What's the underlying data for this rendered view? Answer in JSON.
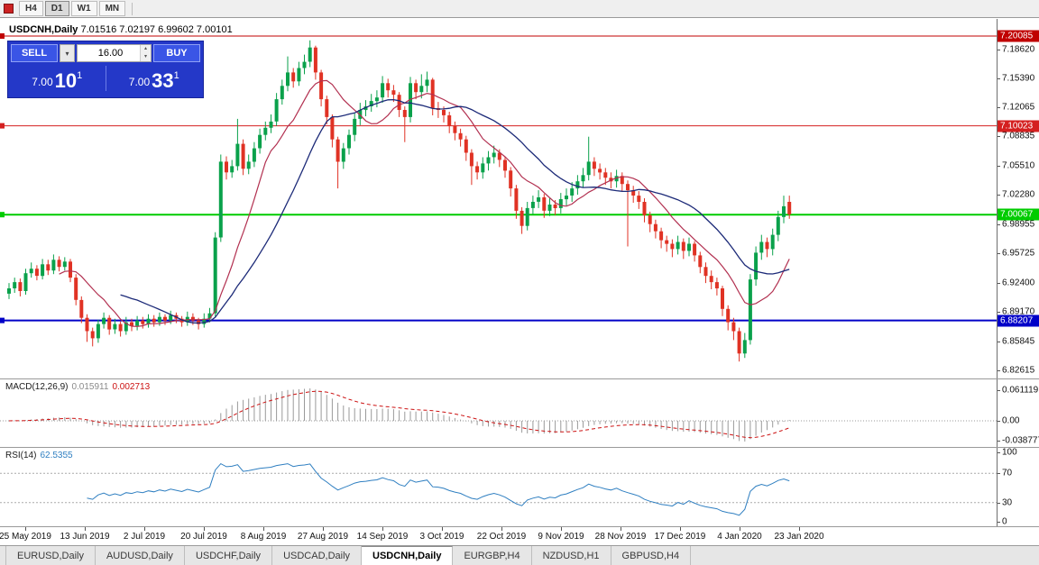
{
  "toolbar": {
    "timeframes": [
      "H4",
      "D1",
      "W1",
      "MN"
    ],
    "active_timeframe": "D1"
  },
  "chart": {
    "title": "USDCNH,Daily",
    "ohlc": "7.01516 7.02197 6.99602 7.00101"
  },
  "trade_panel": {
    "sell_label": "SELL",
    "buy_label": "BUY",
    "volume": "16.00",
    "sell": {
      "base": "7.00",
      "pips": "10",
      "sup": "1"
    },
    "buy": {
      "base": "7.00",
      "pips": "33",
      "sup": "1"
    }
  },
  "icons": {
    "dropdown": "▾",
    "spin_up": "▴",
    "spin_down": "▾"
  },
  "price_axis": [
    "7.18620",
    "7.15390",
    "7.12065",
    "7.08835",
    "7.05510",
    "7.02280",
    "6.98955",
    "6.95725",
    "6.92400",
    "6.89170",
    "6.85845",
    "6.82615"
  ],
  "hlines": [
    {
      "price": "7.20085",
      "color": "#c00000",
      "thickness": 1
    },
    {
      "price": "7.10023",
      "color": "#d42020",
      "thickness": 1
    },
    {
      "price": "7.00067",
      "color": "#00cc00",
      "thickness": 2
    },
    {
      "price": "6.88207",
      "color": "#0000c8",
      "thickness": 2
    }
  ],
  "macd": {
    "label": "MACD(12,26,9)",
    "value_main": "0.015911",
    "value_signal": "0.002713",
    "axis": [
      "0.061119",
      "0.00",
      "-0.038777"
    ]
  },
  "rsi": {
    "label": "RSI(14)",
    "value": "62.5355",
    "axis": [
      "100",
      "70",
      "30",
      "0"
    ],
    "levels": [
      70,
      30
    ]
  },
  "date_axis": [
    "25 May 2019",
    "13 Jun 2019",
    "2 Jul 2019",
    "20 Jul 2019",
    "8 Aug 2019",
    "27 Aug 2019",
    "14 Sep 2019",
    "3 Oct 2019",
    "22 Oct 2019",
    "9 Nov 2019",
    "28 Nov 2019",
    "17 Dec 2019",
    "4 Jan 2020",
    "23 Jan 2020"
  ],
  "tabs": [
    {
      "label": "EURUSD,Daily",
      "active": false
    },
    {
      "label": "AUDUSD,Daily",
      "active": false
    },
    {
      "label": "USDCHF,Daily",
      "active": false
    },
    {
      "label": "USDCAD,Daily",
      "active": false
    },
    {
      "label": "USDCNH,Daily",
      "active": true
    },
    {
      "label": "EURGBP,H4",
      "active": false
    },
    {
      "label": "NZDUSD,H1",
      "active": false
    },
    {
      "label": "GBPUSD,H4",
      "active": false
    }
  ],
  "colors": {
    "candle_up": "#0aa14b",
    "candle_down": "#e03224",
    "ma_fast": "#b23050",
    "ma_slow": "#1c2a78",
    "macd_hist": "#9a9a9a",
    "macd_signal": "#cc1111",
    "rsi": "#2f7fc1"
  },
  "chart_data": {
    "type": "candlestick",
    "symbol": "USDCNH",
    "timeframe": "Daily",
    "last_bar": {
      "open": 7.01516,
      "high": 7.02197,
      "low": 6.99602,
      "close": 7.00101
    },
    "indicators": [
      "SMA fast (red)",
      "SMA slow (navy)",
      "MACD(12,26,9)",
      "RSI(14)"
    ],
    "y_range": [
      6.82615,
      7.20085
    ],
    "candles": [
      [
        6.912,
        6.924,
        6.906,
        6.918
      ],
      [
        6.918,
        6.93,
        6.913,
        6.925
      ],
      [
        6.925,
        6.929,
        6.909,
        6.915
      ],
      [
        6.915,
        6.94,
        6.911,
        6.935
      ],
      [
        6.935,
        6.947,
        6.93,
        6.94
      ],
      [
        6.94,
        6.944,
        6.927,
        6.932
      ],
      [
        6.932,
        6.951,
        6.928,
        6.945
      ],
      [
        6.945,
        6.95,
        6.933,
        6.938
      ],
      [
        6.938,
        6.956,
        6.934,
        6.95
      ],
      [
        6.95,
        6.954,
        6.937,
        6.942
      ],
      [
        6.942,
        6.953,
        6.938,
        6.948
      ],
      [
        6.948,
        6.951,
        6.925,
        6.93
      ],
      [
        6.93,
        6.934,
        6.899,
        6.905
      ],
      [
        6.905,
        6.909,
        6.879,
        6.885
      ],
      [
        6.885,
        6.889,
        6.858,
        6.87
      ],
      [
        6.87,
        6.874,
        6.853,
        6.862
      ],
      [
        6.862,
        6.883,
        6.857,
        6.878
      ],
      [
        6.878,
        6.891,
        6.873,
        6.885
      ],
      [
        6.885,
        6.888,
        6.866,
        6.872
      ],
      [
        6.872,
        6.884,
        6.867,
        6.878
      ],
      [
        6.878,
        6.881,
        6.864,
        6.87
      ],
      [
        6.87,
        6.886,
        6.866,
        6.88
      ],
      [
        6.88,
        6.884,
        6.87,
        6.876
      ],
      [
        6.876,
        6.887,
        6.871,
        6.882
      ],
      [
        6.882,
        6.886,
        6.873,
        6.878
      ],
      [
        6.878,
        6.889,
        6.874,
        6.884
      ],
      [
        6.884,
        6.888,
        6.875,
        6.88
      ],
      [
        6.88,
        6.891,
        6.876,
        6.886
      ],
      [
        6.886,
        6.889,
        6.877,
        6.882
      ],
      [
        6.882,
        6.893,
        6.878,
        6.888
      ],
      [
        6.888,
        6.891,
        6.879,
        6.884
      ],
      [
        6.884,
        6.887,
        6.875,
        6.88
      ],
      [
        6.88,
        6.892,
        6.876,
        6.886
      ],
      [
        6.886,
        6.89,
        6.877,
        6.882
      ],
      [
        6.882,
        6.885,
        6.872,
        6.878
      ],
      [
        6.878,
        6.89,
        6.874,
        6.884
      ],
      [
        6.884,
        6.896,
        6.88,
        6.89
      ],
      [
        6.89,
        6.981,
        6.886,
        6.975
      ],
      [
        6.975,
        7.068,
        6.97,
        7.06
      ],
      [
        7.06,
        7.066,
        7.04,
        7.048
      ],
      [
        7.048,
        7.062,
        7.042,
        7.055
      ],
      [
        7.055,
        7.108,
        7.05,
        7.08
      ],
      [
        7.08,
        7.085,
        7.045,
        7.052
      ],
      [
        7.052,
        7.068,
        7.046,
        7.06
      ],
      [
        7.06,
        7.082,
        7.054,
        7.075
      ],
      [
        7.075,
        7.097,
        7.069,
        7.09
      ],
      [
        7.09,
        7.105,
        7.084,
        7.098
      ],
      [
        7.098,
        7.113,
        7.092,
        7.105
      ],
      [
        7.105,
        7.137,
        7.1,
        7.13
      ],
      [
        7.13,
        7.152,
        7.124,
        7.145
      ],
      [
        7.145,
        7.178,
        7.139,
        7.16
      ],
      [
        7.16,
        7.165,
        7.143,
        7.15
      ],
      [
        7.15,
        7.172,
        7.145,
        7.165
      ],
      [
        7.165,
        7.18,
        7.158,
        7.172
      ],
      [
        7.172,
        7.196,
        7.166,
        7.188
      ],
      [
        7.188,
        7.19,
        7.152,
        7.16
      ],
      [
        7.16,
        7.163,
        7.122,
        7.13
      ],
      [
        7.13,
        7.134,
        7.102,
        7.11
      ],
      [
        7.11,
        7.113,
        7.076,
        7.085
      ],
      [
        7.085,
        7.088,
        7.03,
        7.06
      ],
      [
        7.06,
        7.081,
        7.052,
        7.075
      ],
      [
        7.075,
        7.096,
        7.068,
        7.09
      ],
      [
        7.09,
        7.114,
        7.083,
        7.108
      ],
      [
        7.108,
        7.126,
        7.101,
        7.118
      ],
      [
        7.118,
        7.129,
        7.111,
        7.122
      ],
      [
        7.122,
        7.136,
        7.116,
        7.128
      ],
      [
        7.128,
        7.14,
        7.121,
        7.132
      ],
      [
        7.132,
        7.156,
        7.126,
        7.148
      ],
      [
        7.148,
        7.153,
        7.132,
        7.14
      ],
      [
        7.14,
        7.146,
        7.127,
        7.135
      ],
      [
        7.135,
        7.138,
        7.11,
        7.118
      ],
      [
        7.118,
        7.122,
        7.082,
        7.11
      ],
      [
        7.11,
        7.155,
        7.104,
        7.148
      ],
      [
        7.148,
        7.152,
        7.13,
        7.138
      ],
      [
        7.138,
        7.158,
        7.131,
        7.145
      ],
      [
        7.145,
        7.161,
        7.138,
        7.152
      ],
      [
        7.152,
        7.154,
        7.112,
        7.12
      ],
      [
        7.12,
        7.127,
        7.109,
        7.118
      ],
      [
        7.118,
        7.122,
        7.104,
        7.112
      ],
      [
        7.112,
        7.116,
        7.092,
        7.1
      ],
      [
        7.1,
        7.105,
        7.084,
        7.092
      ],
      [
        7.092,
        7.097,
        7.077,
        7.085
      ],
      [
        7.085,
        7.089,
        7.061,
        7.07
      ],
      [
        7.07,
        7.074,
        7.034,
        7.055
      ],
      [
        7.055,
        7.06,
        7.04,
        7.048
      ],
      [
        7.048,
        7.065,
        7.041,
        7.058
      ],
      [
        7.058,
        7.072,
        7.05,
        7.065
      ],
      [
        7.065,
        7.078,
        7.058,
        7.07
      ],
      [
        7.07,
        7.074,
        7.054,
        7.062
      ],
      [
        7.062,
        7.066,
        7.042,
        7.05
      ],
      [
        7.05,
        7.054,
        7.021,
        7.03
      ],
      [
        7.03,
        7.034,
        6.996,
        7.005
      ],
      [
        7.005,
        7.009,
        6.979,
        6.988
      ],
      [
        6.988,
        7.015,
        6.983,
        7.008
      ],
      [
        7.008,
        7.022,
        7.001,
        7.015
      ],
      [
        7.015,
        7.028,
        7.008,
        7.02
      ],
      [
        7.02,
        7.024,
        6.997,
        7.005
      ],
      [
        7.005,
        7.019,
        6.999,
        7.012
      ],
      [
        7.012,
        7.017,
        7.0,
        7.008
      ],
      [
        7.008,
        7.025,
        7.002,
        7.018
      ],
      [
        7.018,
        7.03,
        7.011,
        7.022
      ],
      [
        7.022,
        7.037,
        7.015,
        7.03
      ],
      [
        7.03,
        7.045,
        7.023,
        7.038
      ],
      [
        7.038,
        7.053,
        7.031,
        7.045
      ],
      [
        7.045,
        7.088,
        7.039,
        7.06
      ],
      [
        7.06,
        7.065,
        7.044,
        7.052
      ],
      [
        7.052,
        7.058,
        7.04,
        7.048
      ],
      [
        7.048,
        7.053,
        7.034,
        7.042
      ],
      [
        7.042,
        7.048,
        7.03,
        7.038
      ],
      [
        7.038,
        7.051,
        7.031,
        7.044
      ],
      [
        7.044,
        7.048,
        7.027,
        7.035
      ],
      [
        7.035,
        7.039,
        6.965,
        7.028
      ],
      [
        7.028,
        7.033,
        7.014,
        7.022
      ],
      [
        7.022,
        7.027,
        7.007,
        7.015
      ],
      [
        7.015,
        7.019,
        6.992,
        7.0
      ],
      [
        7.0,
        7.004,
        6.981,
        6.99
      ],
      [
        6.99,
        6.995,
        6.974,
        6.982
      ],
      [
        6.982,
        6.986,
        6.963,
        6.972
      ],
      [
        6.972,
        6.977,
        6.959,
        6.968
      ],
      [
        6.968,
        6.973,
        6.953,
        6.962
      ],
      [
        6.962,
        6.977,
        6.956,
        6.97
      ],
      [
        6.97,
        6.974,
        6.951,
        6.96
      ],
      [
        6.96,
        6.975,
        6.954,
        6.968
      ],
      [
        6.968,
        6.971,
        6.948,
        6.955
      ],
      [
        6.955,
        6.959,
        6.935,
        6.942
      ],
      [
        6.942,
        6.947,
        6.924,
        6.932
      ],
      [
        6.932,
        6.938,
        6.917,
        6.925
      ],
      [
        6.925,
        6.93,
        6.91,
        6.918
      ],
      [
        6.918,
        6.921,
        6.887,
        6.895
      ],
      [
        6.895,
        6.899,
        6.871,
        6.88
      ],
      [
        6.88,
        6.885,
        6.86,
        6.87
      ],
      [
        6.87,
        6.874,
        6.836,
        6.845
      ],
      [
        6.845,
        6.868,
        6.84,
        6.86
      ],
      [
        6.86,
        6.934,
        6.855,
        6.928
      ],
      [
        6.928,
        6.965,
        6.921,
        6.958
      ],
      [
        6.958,
        6.978,
        6.95,
        6.97
      ],
      [
        6.97,
        6.975,
        6.953,
        6.962
      ],
      [
        6.962,
        6.985,
        6.955,
        6.978
      ],
      [
        6.978,
        7.005,
        6.971,
        6.998
      ],
      [
        6.998,
        7.022,
        6.991,
        7.01
      ],
      [
        7.015,
        7.022,
        6.996,
        7.001
      ]
    ]
  }
}
